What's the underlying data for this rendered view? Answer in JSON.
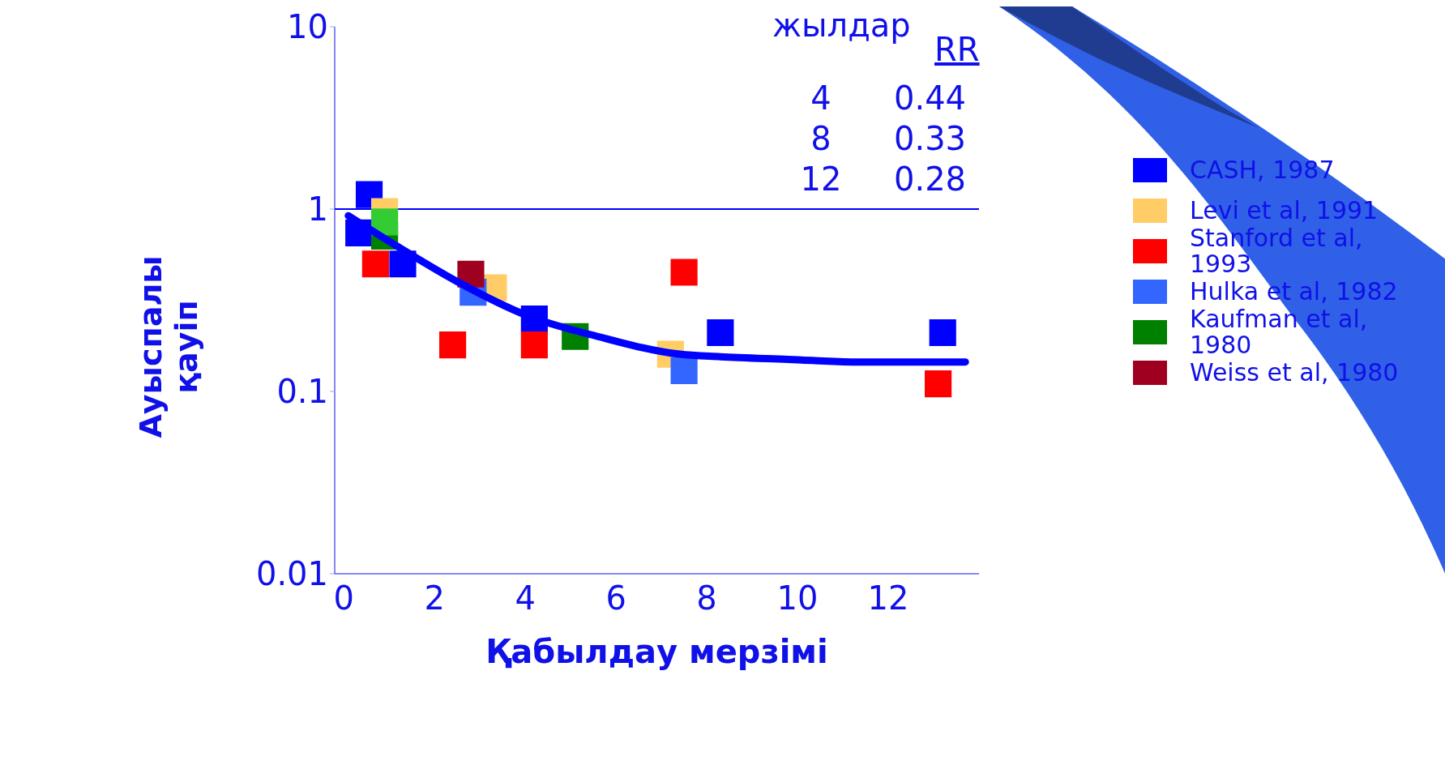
{
  "chart_data": {
    "type": "scatter",
    "xlabel": "Қабылдау мерзімі",
    "ylabel": "Ауыспалы қауіп",
    "log": "y",
    "xlim": [
      -0.2,
      14
    ],
    "ylim": [
      0.01,
      10
    ],
    "xticks": [
      0,
      2,
      4,
      6,
      8,
      10,
      12
    ],
    "yticks": [
      0.01,
      0.1,
      1,
      10
    ],
    "grid": false,
    "legend": "right",
    "marker": "square",
    "ref_lines": [
      {
        "axis": "y",
        "value": 1,
        "color": "#0000ff"
      }
    ],
    "annotations": [
      "жылдар",
      "RR",
      "4",
      "0.44",
      "8",
      "0.33",
      "12",
      "0.28"
    ],
    "series": [
      {
        "name": "CASH, 1987",
        "color": "#0000ff",
        "x": [
          0.56,
          0.33,
          1.3,
          4.2,
          8.3,
          13.2
        ],
        "values": [
          1.2,
          0.74,
          0.5,
          0.25,
          0.21,
          0.21
        ]
      },
      {
        "name": "Levi et al, 1991",
        "color": "#ffcc66",
        "x": [
          0.9,
          3.3,
          7.2
        ],
        "values": [
          0.97,
          0.37,
          0.16
        ]
      },
      {
        "name": "Stanford et al, 1993",
        "color": "#ff0000",
        "x": [
          0.7,
          2.4,
          4.2,
          7.5,
          13.1
        ],
        "values": [
          0.5,
          0.18,
          0.18,
          0.45,
          0.11
        ]
      },
      {
        "name": "Hulka et al, 1982",
        "color": "#3366ff",
        "x": [
          2.85,
          7.5
        ],
        "values": [
          0.35,
          0.13
        ]
      },
      {
        "name": "Kaufman et al, 1980",
        "color": "#008000",
        "x": [
          0.9,
          5.1
        ],
        "values": [
          0.71,
          0.2
        ]
      },
      {
        "name": "Weiss et al, 1980",
        "color": "#a00020",
        "x": [
          2.8
        ],
        "values": [
          0.44
        ]
      },
      {
        "color": "#33cc33",
        "x": [
          0.9
        ],
        "values": [
          0.85
        ]
      },
      {
        "type": "line",
        "marker": "none",
        "color": "#0000ff",
        "x": [
          0.1,
          1.2,
          2.5,
          4.05,
          5.6,
          7.4,
          8.3,
          9.8,
          11.35,
          13.7
        ],
        "values": [
          0.92,
          0.62,
          0.4,
          0.26,
          0.2,
          0.16,
          0.155,
          0.15,
          0.145,
          0.145
        ]
      }
    ]
  }
}
